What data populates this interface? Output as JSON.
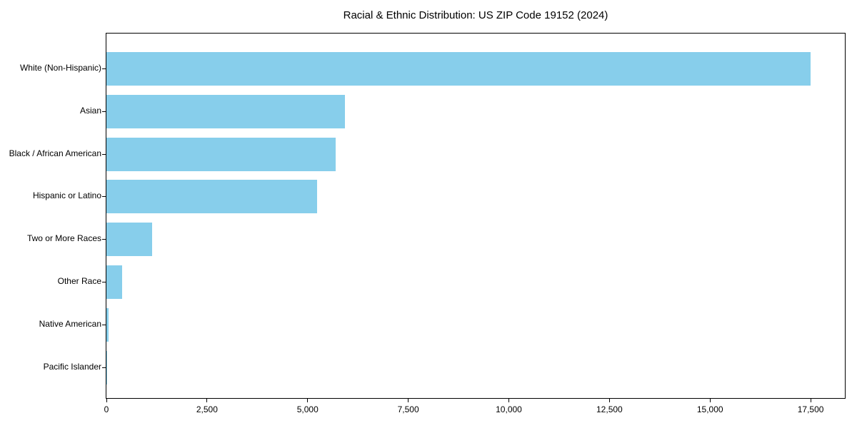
{
  "chart_data": {
    "type": "bar",
    "orientation": "horizontal",
    "title": "Racial & Ethnic Distribution: US ZIP Code 19152 (2024)",
    "categories": [
      "White (Non-Hispanic)",
      "Asian",
      "Black / African American",
      "Hispanic or Latino",
      "Two or More Races",
      "Other Race",
      "Native American",
      "Pacific Islander"
    ],
    "values": [
      17490,
      5920,
      5690,
      5230,
      1130,
      390,
      57,
      12
    ],
    "xlabel": "",
    "ylabel": "",
    "xlim": [
      0,
      18350
    ],
    "x_ticks": [
      0,
      2500,
      5000,
      7500,
      10000,
      12500,
      15000,
      17500
    ],
    "x_tick_labels": [
      "0",
      "2,500",
      "5,000",
      "7,500",
      "10,000",
      "12,500",
      "15,000",
      "17,500"
    ],
    "bar_color": "#87CEEB",
    "axis_color": "#000000",
    "background_color": "#FFFFFF",
    "grid": false,
    "legend_position": "none"
  }
}
